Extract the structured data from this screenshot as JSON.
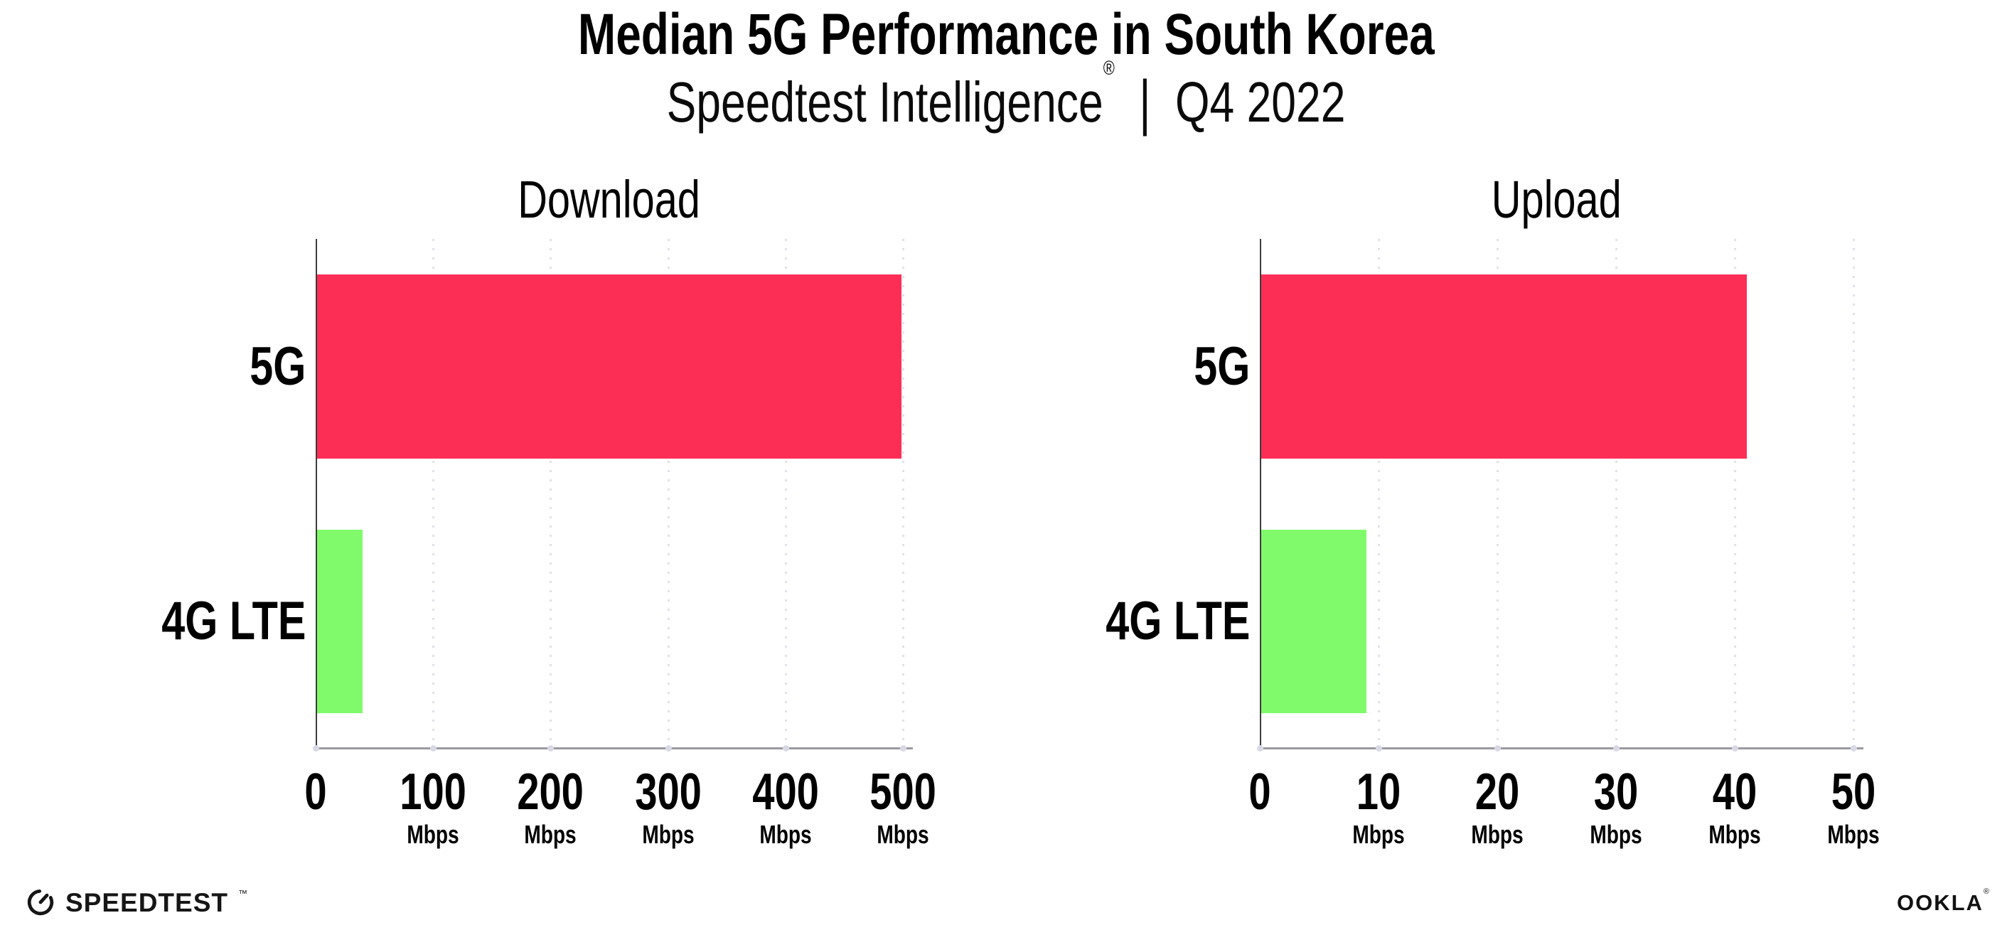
{
  "header": {
    "title": "Median 5G Performance in South Korea",
    "subtitle_brand": "Speedtest Intelligence",
    "subtitle_registered": "®",
    "subtitle_separator": "|",
    "subtitle_period": "Q4 2022"
  },
  "chart_data": [
    {
      "type": "bar",
      "orientation": "horizontal",
      "title": "Download",
      "categories": [
        "5G",
        "4G LTE"
      ],
      "values": [
        499,
        40
      ],
      "unit": "Mbps",
      "xlim": [
        0,
        500
      ],
      "xticks": [
        {
          "label": "0",
          "unit": ""
        },
        {
          "label": "100",
          "unit": "Mbps"
        },
        {
          "label": "200",
          "unit": "Mbps"
        },
        {
          "label": "300",
          "unit": "Mbps"
        },
        {
          "label": "400",
          "unit": "Mbps"
        },
        {
          "label": "500",
          "unit": "Mbps"
        }
      ],
      "bar_colors": [
        "#FC2E56",
        "#80FA6B"
      ],
      "grid": "vertical-dotted",
      "legend": "none"
    },
    {
      "type": "bar",
      "orientation": "horizontal",
      "title": "Upload",
      "categories": [
        "5G",
        "4G LTE"
      ],
      "values": [
        41,
        9
      ],
      "unit": "Mbps",
      "xlim": [
        0,
        50
      ],
      "xticks": [
        {
          "label": "0",
          "unit": ""
        },
        {
          "label": "10",
          "unit": "Mbps"
        },
        {
          "label": "20",
          "unit": "Mbps"
        },
        {
          "label": "30",
          "unit": "Mbps"
        },
        {
          "label": "40",
          "unit": "Mbps"
        },
        {
          "label": "50",
          "unit": "Mbps"
        }
      ],
      "bar_colors": [
        "#FC2E56",
        "#80FA6B"
      ],
      "grid": "vertical-dotted",
      "legend": "none"
    }
  ],
  "footer": {
    "speedtest_text": "SPEEDTEST",
    "speedtest_tm": "™",
    "ookla_text": "OOKLA",
    "ookla_registered": "®"
  },
  "colors": {
    "bar_5g": "#FC2E56",
    "bar_4g_lte": "#80FA6B",
    "gridline": "#E1E1EB",
    "axis_spine": "#3C3C3C",
    "axis_line": "#9A9AA0",
    "text": "#000000",
    "background": "#FFFFFF"
  }
}
